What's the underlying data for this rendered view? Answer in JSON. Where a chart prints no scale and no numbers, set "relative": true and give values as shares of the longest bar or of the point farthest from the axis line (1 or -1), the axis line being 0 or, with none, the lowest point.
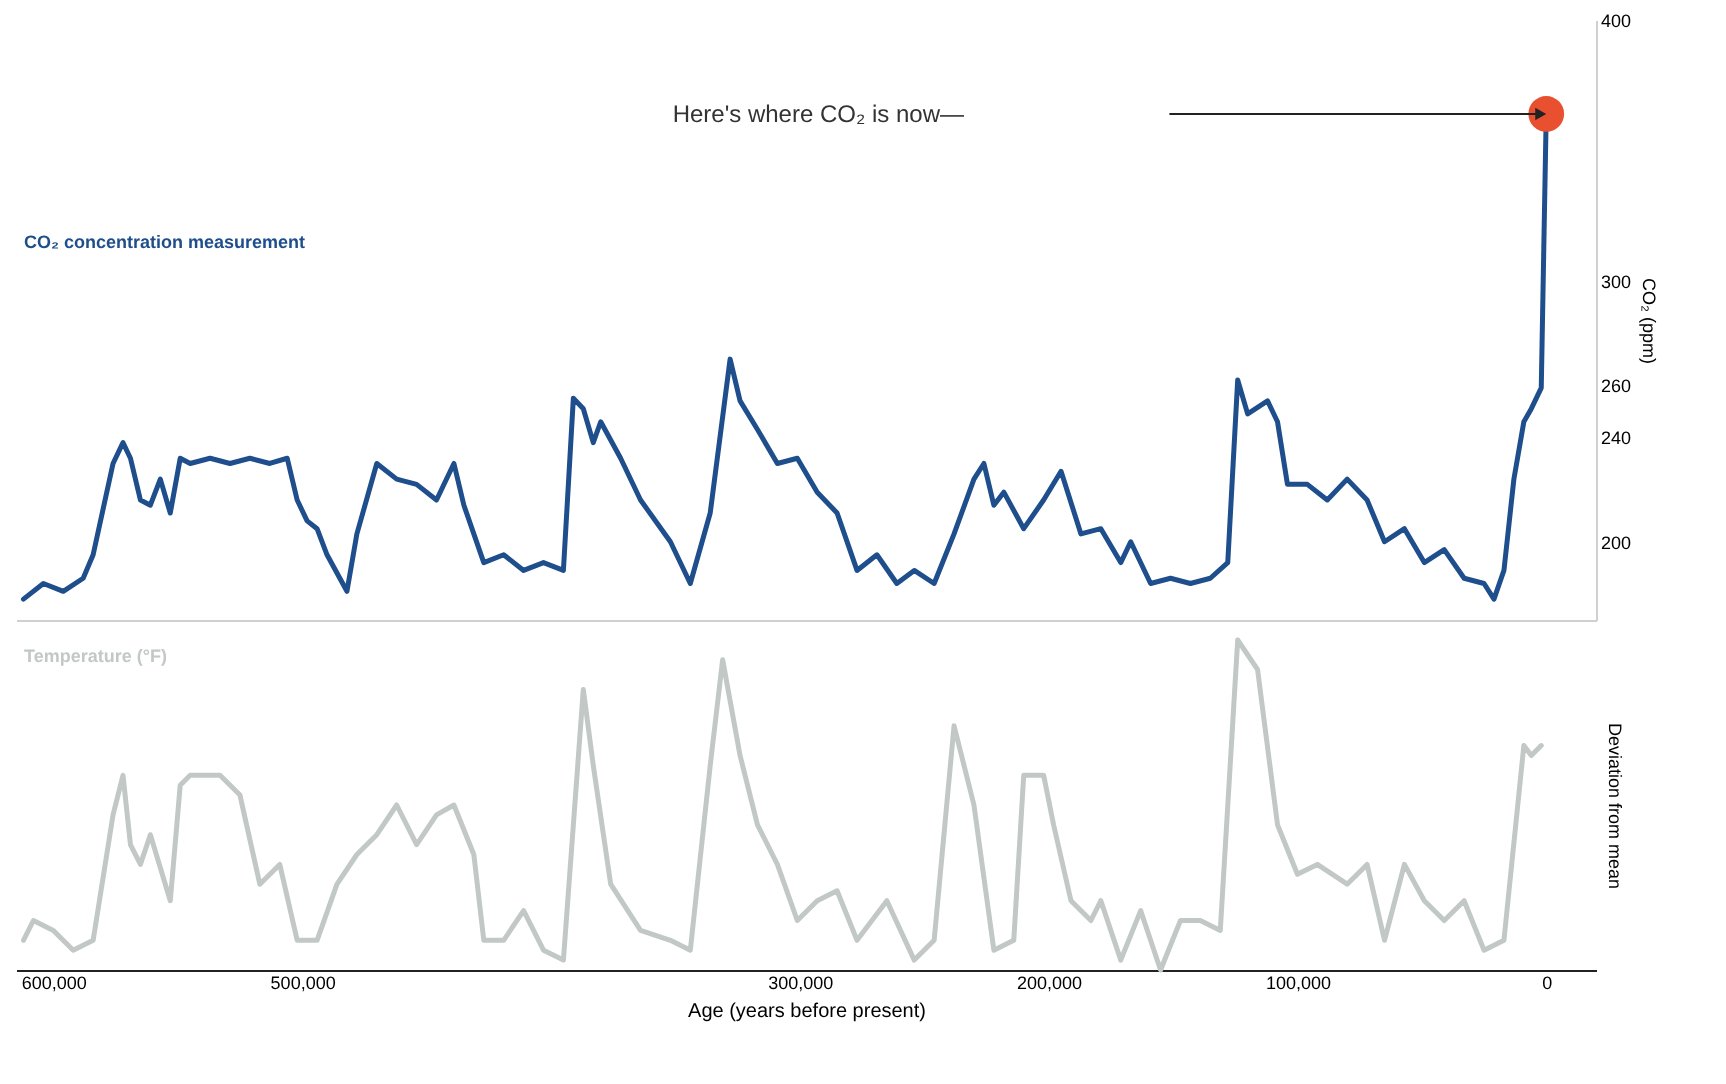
{
  "chart_data": [
    {
      "type": "line",
      "ylabel": "CO₂ (ppm)",
      "xlim": [
        615000,
        -20000
      ],
      "ylim": [
        170,
        400
      ],
      "yticks": [
        200,
        240,
        260,
        300,
        400
      ],
      "tick_labels": "y",
      "annotations": [
        "Here's where CO₂ is now—"
      ],
      "series": [
        {
          "name": "CO₂ concentration measurement",
          "color": "#1f4e8c",
          "x": [
            612000,
            604000,
            596000,
            588000,
            584000,
            576000,
            572000,
            569000,
            565000,
            561000,
            557000,
            553000,
            549000,
            545000,
            537000,
            529000,
            521000,
            513000,
            506000,
            502000,
            498000,
            494000,
            490000,
            482000,
            478000,
            470000,
            462000,
            454000,
            446000,
            439000,
            435000,
            427000,
            419000,
            411000,
            403000,
            395000,
            391000,
            387000,
            383000,
            380000,
            372000,
            364000,
            352000,
            344000,
            336000,
            328000,
            324000,
            317000,
            309000,
            301000,
            293000,
            285000,
            277000,
            269000,
            261000,
            254000,
            246000,
            238000,
            230000,
            226000,
            222000,
            218000,
            210000,
            202000,
            195000,
            187000,
            179000,
            171000,
            167000,
            159000,
            151000,
            143000,
            135000,
            128000,
            124000,
            120000,
            112000,
            108000,
            104000,
            96000,
            88000,
            80000,
            72000,
            65000,
            57000,
            49000,
            41000,
            33000,
            25000,
            21000,
            17000,
            13000,
            9000,
            6000,
            2000,
            0
          ],
          "values": [
            178,
            184,
            181,
            186,
            195,
            230,
            238,
            232,
            216,
            214,
            224,
            211,
            232,
            230,
            232,
            230,
            232,
            230,
            232,
            216,
            208,
            205,
            195,
            181,
            203,
            230,
            224,
            222,
            216,
            230,
            214,
            192,
            195,
            189,
            192,
            189,
            255,
            251,
            238,
            246,
            232,
            216,
            200,
            184,
            211,
            270,
            254,
            243,
            230,
            232,
            219,
            211,
            189,
            195,
            184,
            189,
            184,
            203,
            224,
            230,
            214,
            219,
            205,
            216,
            227,
            203,
            205,
            192,
            200,
            184,
            186,
            184,
            186,
            192,
            262,
            249,
            254,
            246,
            222,
            222,
            216,
            224,
            216,
            200,
            205,
            192,
            197,
            186,
            184,
            178,
            189,
            224,
            246,
            251,
            259,
            364
          ]
        },
        {
          "type": "scatter",
          "color": "#e8502f",
          "x": [
            0
          ],
          "values": [
            364
          ]
        }
      ]
    },
    {
      "type": "line",
      "relative": true,
      "ylabel": "Deviation from mean",
      "xlabel": "Age (years before present)",
      "xlim": [
        615000,
        -20000
      ],
      "xticks": [
        {
          "value": 600000,
          "label": "600,000"
        },
        {
          "value": 500000,
          "label": "500,000"
        },
        {
          "value": 300000,
          "label": "300,000"
        },
        {
          "value": 200000,
          "label": "200,000"
        },
        {
          "value": 100000,
          "label": "100,000"
        },
        0
      ],
      "tick_labels": "x",
      "series": [
        {
          "name": "Temperature (°F)",
          "color": "#c2c8c5",
          "x": [
            612000,
            608000,
            600000,
            592000,
            584000,
            576000,
            572000,
            569000,
            565000,
            561000,
            553000,
            549000,
            545000,
            533000,
            525000,
            517000,
            509000,
            502000,
            494000,
            486000,
            478000,
            470000,
            462000,
            454000,
            446000,
            439000,
            431000,
            427000,
            419000,
            411000,
            403000,
            395000,
            387000,
            383000,
            376000,
            364000,
            352000,
            344000,
            336000,
            331000,
            324000,
            317000,
            309000,
            301000,
            293000,
            285000,
            277000,
            265000,
            254000,
            246000,
            238000,
            230000,
            222000,
            214000,
            210000,
            202000,
            198000,
            191000,
            183000,
            179000,
            171000,
            163000,
            155000,
            147000,
            139000,
            131000,
            124000,
            116000,
            108000,
            100000,
            92000,
            80000,
            72000,
            65000,
            57000,
            49000,
            41000,
            33000,
            25000,
            17000,
            9000,
            6000,
            2000
          ],
          "values": [
            0.09,
            0.15,
            0.12,
            0.06,
            0.09,
            0.47,
            0.59,
            0.38,
            0.32,
            0.41,
            0.21,
            0.56,
            0.59,
            0.59,
            0.53,
            0.26,
            0.32,
            0.09,
            0.09,
            0.26,
            0.35,
            0.41,
            0.5,
            0.38,
            0.47,
            0.5,
            0.35,
            0.09,
            0.09,
            0.18,
            0.06,
            0.03,
            0.85,
            0.62,
            0.26,
            0.12,
            0.09,
            0.06,
            0.62,
            0.94,
            0.65,
            0.44,
            0.32,
            0.15,
            0.21,
            0.24,
            0.09,
            0.21,
            0.03,
            0.09,
            0.74,
            0.5,
            0.06,
            0.09,
            0.59,
            0.59,
            0.44,
            0.21,
            0.15,
            0.21,
            0.03,
            0.18,
            0,
            0.15,
            0.15,
            0.12,
            1,
            0.91,
            0.44,
            0.29,
            0.32,
            0.26,
            0.32,
            0.09,
            0.32,
            0.21,
            0.15,
            0.21,
            0.06,
            0.09,
            0.68,
            0.65,
            0.68
          ]
        }
      ]
    }
  ]
}
